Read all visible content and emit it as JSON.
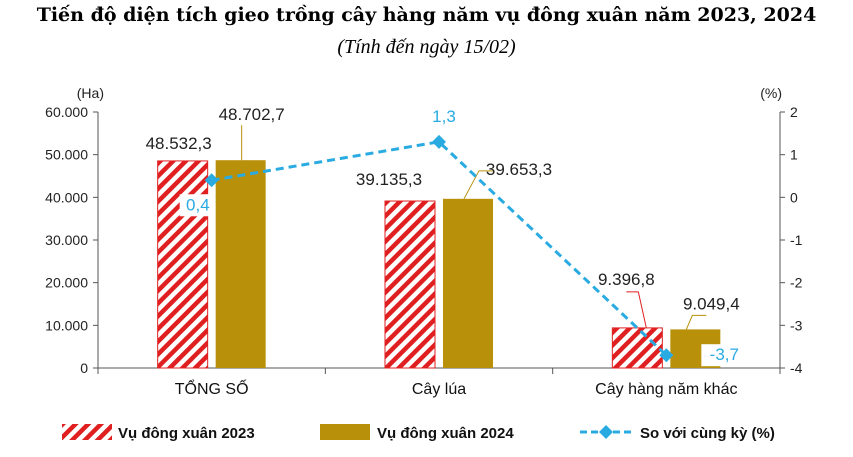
{
  "chart_data": {
    "type": "bar",
    "title": "Tiến độ diện tích gieo trồng cây hàng năm vụ đông xuân năm 2023, 2024",
    "subtitle": "(Tính đến ngày 15/02)",
    "left_unit": "(Ha)",
    "right_unit": "(%)",
    "categories": [
      "TỔNG SỐ",
      "Cây lúa",
      "Cây hàng năm khác"
    ],
    "ylim": [
      0,
      60000
    ],
    "y_ticks": [
      "0",
      "10.000",
      "20.000",
      "30.000",
      "40.000",
      "50.000",
      "60.000"
    ],
    "y2lim": [
      -4,
      2
    ],
    "y2_ticks": [
      "-4",
      "-3",
      "-2",
      "-1",
      "0",
      "1",
      "2"
    ],
    "series": [
      {
        "name": "Vụ đông xuân 2023",
        "type": "bar",
        "color": "#e02020",
        "pattern": "diagonal-hatch",
        "values": [
          48532.3,
          39135.3,
          9396.8
        ],
        "labels": [
          "48.532,3",
          "39.135,3",
          "9.396,8"
        ]
      },
      {
        "name": "Vụ đông xuân 2024",
        "type": "bar",
        "color": "#b8900a",
        "values": [
          48702.7,
          39653.3,
          9049.4
        ],
        "labels": [
          "48.702,7",
          "39.653,3",
          "9.049,4"
        ]
      },
      {
        "name": "So với cùng kỳ (%)",
        "type": "line",
        "axis": "right",
        "color": "#29abe2",
        "style": "dashed",
        "marker": "diamond",
        "values": [
          0.4,
          1.3,
          -3.7
        ],
        "labels": [
          "0,4",
          "1,3",
          "-3,7"
        ]
      }
    ],
    "legend_position": "bottom",
    "grid": false
  }
}
